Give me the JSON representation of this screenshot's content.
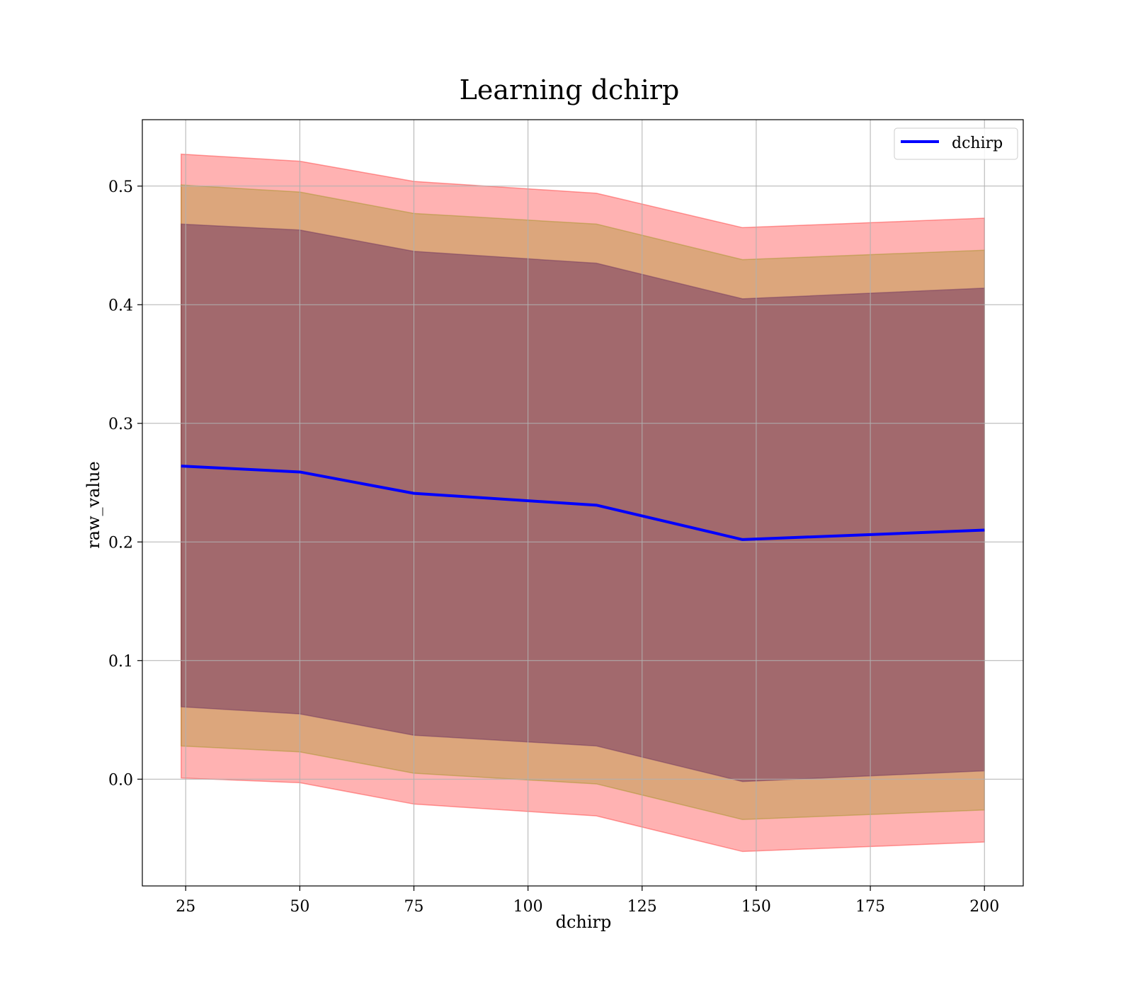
{
  "chart_data": {
    "type": "line",
    "title": "Learning dchirp",
    "xlabel": "dchirp",
    "ylabel": "raw_value",
    "xlim": [
      15.5,
      208.5
    ],
    "ylim": [
      -0.09,
      0.556
    ],
    "x_ticks": [
      25,
      50,
      75,
      100,
      125,
      150,
      175,
      200
    ],
    "y_ticks": [
      0.0,
      0.1,
      0.2,
      0.3,
      0.4,
      0.5
    ],
    "y_tick_labels": [
      "0.0",
      "0.1",
      "0.2",
      "0.3",
      "0.4",
      "0.5"
    ],
    "grid": true,
    "legend_position": "top-right",
    "x": [
      24,
      50,
      75,
      115,
      147,
      200
    ],
    "series": [
      {
        "name": "dchirp",
        "values": [
          0.264,
          0.259,
          0.241,
          0.231,
          0.202,
          0.21
        ],
        "color": "#0000ff"
      }
    ],
    "bands": [
      {
        "lower": [
          0.001,
          -0.003,
          -0.021,
          -0.031,
          -0.061,
          -0.053
        ],
        "upper": [
          0.527,
          0.521,
          0.504,
          0.494,
          0.465,
          0.473
        ],
        "color": "#ff0000",
        "opacity": 0.3
      },
      {
        "lower": [
          0.028,
          0.023,
          0.005,
          -0.004,
          -0.034,
          -0.026
        ],
        "upper": [
          0.501,
          0.495,
          0.477,
          0.468,
          0.438,
          0.446
        ],
        "color": "#8b8b00",
        "opacity": 0.3
      },
      {
        "lower": [
          0.061,
          0.055,
          0.037,
          0.028,
          -0.002,
          0.007
        ],
        "upper": [
          0.468,
          0.463,
          0.445,
          0.435,
          0.405,
          0.414
        ],
        "color": "#5a1e5a",
        "opacity": 0.45
      }
    ]
  }
}
